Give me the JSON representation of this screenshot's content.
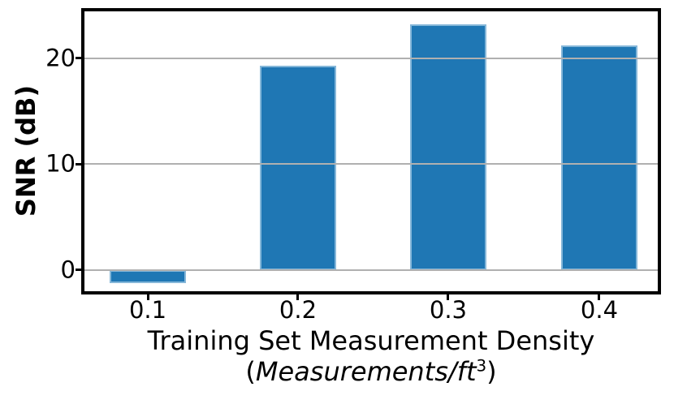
{
  "chart_data": {
    "type": "bar",
    "title": "",
    "categories": [
      "0.1",
      "0.2",
      "0.3",
      "0.4"
    ],
    "values": [
      -1.2,
      19.3,
      23.2,
      21.2
    ],
    "series_name": "SNR",
    "xlabel_line1": "Training Set Measurement Density",
    "xlabel_line2": {
      "open": "(",
      "italic": "Measurements/ft",
      "sup": "3",
      "close": ")"
    },
    "ylabel": "SNR (dB)",
    "yticks": [
      0,
      10,
      20
    ],
    "ylim": [
      -2.0,
      24.4
    ],
    "xticks": [
      "0.1",
      "0.2",
      "0.3",
      "0.4"
    ],
    "grid": "horizontal-on-top-of-bars",
    "legend": "none",
    "colors": {
      "bar_fill": "#1f77b4",
      "bar_edge": "#85b7d9",
      "grid_line": "#b0b0b0",
      "spine": "#000000",
      "text": "#000000",
      "background": "#ffffff"
    }
  }
}
